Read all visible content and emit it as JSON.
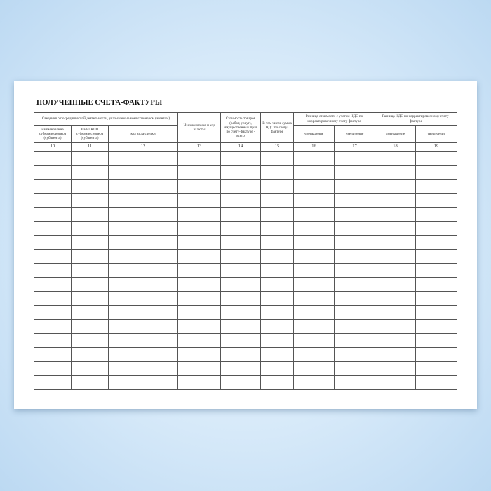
{
  "title": "ПОЛУЧЕННЫЕ СЧЕТА-ФАКТУРЫ",
  "header": {
    "group_intermediary": "Сведения о посреднической деятельности, указываемые комиссионером (агентом)",
    "col10": "наименование субкомиссионера (субагента)",
    "col11": "ИНН/ КПП субкомиссионера (субагента)",
    "col12": "код вида сделки",
    "col13": "Наименование и код валюты",
    "col14": "Стоимость товаров (работ, услуг), имущественных прав по счету-фактуре - всего",
    "col15": "В том числе сумма НДС по счету-фактуре",
    "group_cost_diff": "Разница стоимости с учетом НДС по корректировочному счету-фактуре",
    "group_vat_diff": "Разница НДС по корректировочному счету-фактуре",
    "col16": "уменьшение",
    "col17": "увеличение",
    "col18": "уменьшение",
    "col19": "увеличение"
  },
  "column_numbers": [
    "10",
    "11",
    "12",
    "13",
    "14",
    "15",
    "16",
    "17",
    "18",
    "19"
  ],
  "empty_rows": 17
}
